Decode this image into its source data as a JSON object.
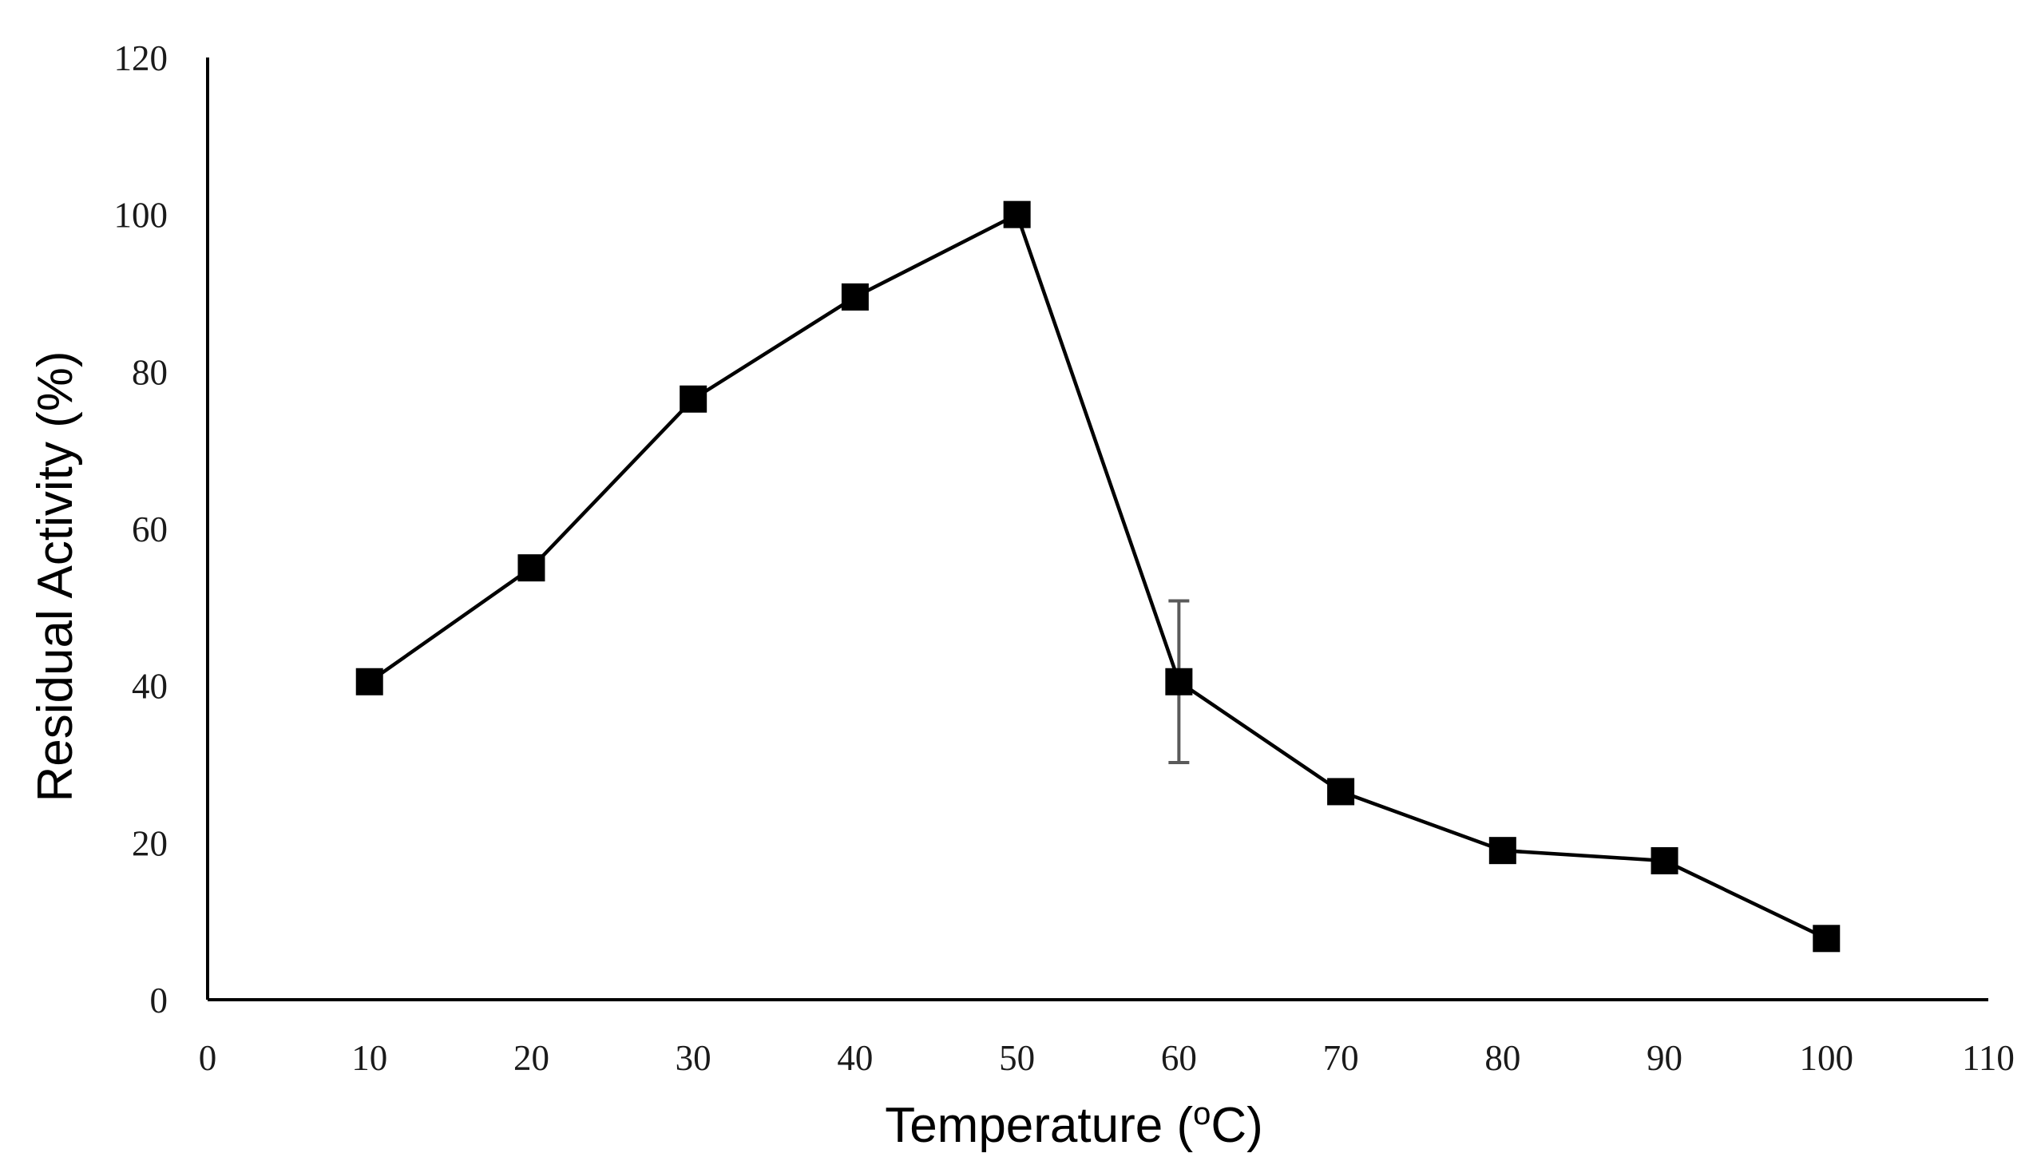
{
  "chart_data": {
    "type": "line",
    "title": "",
    "xlabel": "Temperature (oC)",
    "xlabel_parts": {
      "before": "Temperature (",
      "superscript": "o",
      "after": "C)"
    },
    "ylabel": "Residual Activity (%)",
    "xlim": [
      0,
      110
    ],
    "ylim": [
      0,
      120
    ],
    "xticks": [
      0,
      10,
      20,
      30,
      40,
      50,
      60,
      70,
      80,
      90,
      100,
      110
    ],
    "yticks": [
      0,
      20,
      40,
      60,
      80,
      100,
      120
    ],
    "grid": false,
    "legend": "none",
    "series": [
      {
        "name": "Residual Activity",
        "marker": "square",
        "color": "#000000",
        "x": [
          10,
          20,
          30,
          40,
          50,
          60,
          70,
          80,
          90,
          100
        ],
        "y": [
          40.5,
          55,
          76.5,
          89.5,
          100,
          40.5,
          26.5,
          19,
          17.7,
          7.8
        ],
        "error": [
          0,
          0,
          0,
          0,
          0,
          10.3,
          0,
          0,
          0,
          0
        ]
      }
    ],
    "colors": {
      "line": "#000000",
      "marker": "#000000",
      "error_bar": "#5a5a5a",
      "axis": "#000000"
    }
  }
}
